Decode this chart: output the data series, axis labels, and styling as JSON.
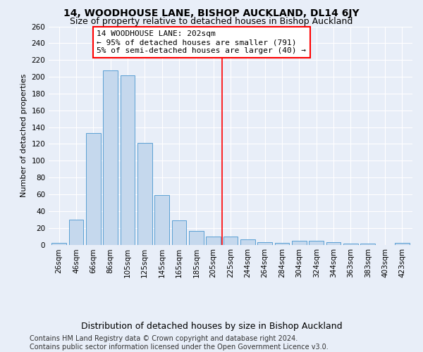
{
  "title": "14, WOODHOUSE LANE, BISHOP AUCKLAND, DL14 6JY",
  "subtitle": "Size of property relative to detached houses in Bishop Auckland",
  "xlabel": "Distribution of detached houses by size in Bishop Auckland",
  "ylabel": "Number of detached properties",
  "categories": [
    "26sqm",
    "46sqm",
    "66sqm",
    "86sqm",
    "105sqm",
    "125sqm",
    "145sqm",
    "165sqm",
    "185sqm",
    "205sqm",
    "225sqm",
    "244sqm",
    "264sqm",
    "284sqm",
    "304sqm",
    "324sqm",
    "344sqm",
    "363sqm",
    "383sqm",
    "403sqm",
    "423sqm"
  ],
  "values": [
    2,
    30,
    133,
    208,
    202,
    121,
    59,
    29,
    16,
    10,
    10,
    6,
    3,
    2,
    5,
    5,
    3,
    1,
    1,
    0,
    2
  ],
  "bar_color": "#c5d8ed",
  "bar_edge_color": "#5a9fd4",
  "background_color": "#e8eef8",
  "vline_x": 9.5,
  "vline_color": "red",
  "annotation_text": "14 WOODHOUSE LANE: 202sqm\n← 95% of detached houses are smaller (791)\n5% of semi-detached houses are larger (40) →",
  "annotation_box_color": "white",
  "annotation_box_edge": "red",
  "ylim": [
    0,
    260
  ],
  "yticks": [
    0,
    20,
    40,
    60,
    80,
    100,
    120,
    140,
    160,
    180,
    200,
    220,
    240,
    260
  ],
  "footer_line1": "Contains HM Land Registry data © Crown copyright and database right 2024.",
  "footer_line2": "Contains public sector information licensed under the Open Government Licence v3.0.",
  "title_fontsize": 10,
  "subtitle_fontsize": 9,
  "xlabel_fontsize": 9,
  "ylabel_fontsize": 8,
  "tick_fontsize": 7.5,
  "annotation_fontsize": 8,
  "footer_fontsize": 7
}
